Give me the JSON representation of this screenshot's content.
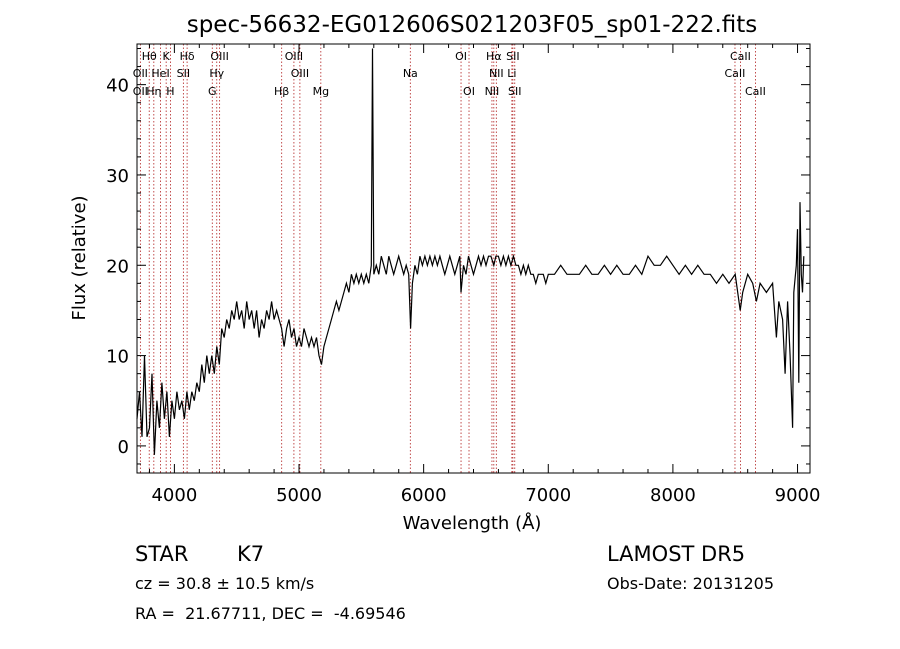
{
  "chart_data": {
    "type": "line",
    "title": "spec-56632-EG012606S021203F05_sp01-222.fits",
    "xlabel": "Wavelength (Å)",
    "ylabel": "Flux (relative)",
    "xlim": [
      3700,
      9100
    ],
    "ylim": [
      -3,
      44.5
    ],
    "xticks": [
      4000,
      5000,
      6000,
      7000,
      8000,
      9000
    ],
    "yticks": [
      0,
      10,
      20,
      30,
      40
    ],
    "grid": false,
    "series": [
      {
        "points": [
          [
            3700,
            3
          ],
          [
            3720,
            6
          ],
          [
            3740,
            1
          ],
          [
            3760,
            10
          ],
          [
            3780,
            1
          ],
          [
            3800,
            2
          ],
          [
            3820,
            8
          ],
          [
            3840,
            -1
          ],
          [
            3860,
            5
          ],
          [
            3880,
            2
          ],
          [
            3900,
            7
          ],
          [
            3920,
            3
          ],
          [
            3940,
            6
          ],
          [
            3960,
            1
          ],
          [
            3980,
            5
          ],
          [
            4000,
            3
          ],
          [
            4020,
            6
          ],
          [
            4040,
            4
          ],
          [
            4060,
            5
          ],
          [
            4080,
            3
          ],
          [
            4100,
            6
          ],
          [
            4120,
            4
          ],
          [
            4140,
            6
          ],
          [
            4160,
            5
          ],
          [
            4180,
            7
          ],
          [
            4200,
            6
          ],
          [
            4220,
            9
          ],
          [
            4240,
            7
          ],
          [
            4260,
            10
          ],
          [
            4280,
            8
          ],
          [
            4300,
            10
          ],
          [
            4320,
            8
          ],
          [
            4340,
            11
          ],
          [
            4360,
            9
          ],
          [
            4380,
            13
          ],
          [
            4400,
            12
          ],
          [
            4420,
            14
          ],
          [
            4440,
            13
          ],
          [
            4460,
            15
          ],
          [
            4480,
            14
          ],
          [
            4500,
            16
          ],
          [
            4520,
            14
          ],
          [
            4540,
            15
          ],
          [
            4560,
            13
          ],
          [
            4580,
            16
          ],
          [
            4600,
            14
          ],
          [
            4620,
            15
          ],
          [
            4640,
            13
          ],
          [
            4660,
            15
          ],
          [
            4680,
            12
          ],
          [
            4700,
            14
          ],
          [
            4720,
            13
          ],
          [
            4740,
            15
          ],
          [
            4760,
            14
          ],
          [
            4780,
            16
          ],
          [
            4800,
            14
          ],
          [
            4820,
            15
          ],
          [
            4840,
            14
          ],
          [
            4860,
            13
          ],
          [
            4880,
            11
          ],
          [
            4900,
            13
          ],
          [
            4920,
            14
          ],
          [
            4940,
            12
          ],
          [
            4960,
            13
          ],
          [
            4980,
            11
          ],
          [
            5000,
            12
          ],
          [
            5020,
            11
          ],
          [
            5040,
            13
          ],
          [
            5060,
            12
          ],
          [
            5080,
            11
          ],
          [
            5100,
            12
          ],
          [
            5120,
            11
          ],
          [
            5140,
            12
          ],
          [
            5160,
            10
          ],
          [
            5180,
            9
          ],
          [
            5200,
            11
          ],
          [
            5220,
            12
          ],
          [
            5240,
            13
          ],
          [
            5260,
            14
          ],
          [
            5280,
            15
          ],
          [
            5300,
            16
          ],
          [
            5320,
            15
          ],
          [
            5340,
            16
          ],
          [
            5360,
            17
          ],
          [
            5380,
            18
          ],
          [
            5400,
            17
          ],
          [
            5420,
            19
          ],
          [
            5440,
            18
          ],
          [
            5460,
            19
          ],
          [
            5480,
            18
          ],
          [
            5500,
            19
          ],
          [
            5520,
            18
          ],
          [
            5540,
            19
          ],
          [
            5560,
            18
          ],
          [
            5580,
            20
          ],
          [
            5590,
            44
          ],
          [
            5600,
            19
          ],
          [
            5620,
            20
          ],
          [
            5640,
            19
          ],
          [
            5660,
            21
          ],
          [
            5680,
            20
          ],
          [
            5700,
            19
          ],
          [
            5720,
            21
          ],
          [
            5740,
            20
          ],
          [
            5760,
            19
          ],
          [
            5780,
            20
          ],
          [
            5800,
            21
          ],
          [
            5820,
            20
          ],
          [
            5840,
            19
          ],
          [
            5860,
            20
          ],
          [
            5880,
            19
          ],
          [
            5895,
            13
          ],
          [
            5910,
            18
          ],
          [
            5930,
            20
          ],
          [
            5950,
            19
          ],
          [
            5970,
            21
          ],
          [
            5990,
            20
          ],
          [
            6010,
            21
          ],
          [
            6030,
            20
          ],
          [
            6050,
            21
          ],
          [
            6070,
            20
          ],
          [
            6090,
            21
          ],
          [
            6110,
            20
          ],
          [
            6130,
            21
          ],
          [
            6150,
            20
          ],
          [
            6170,
            19
          ],
          [
            6190,
            20
          ],
          [
            6210,
            21
          ],
          [
            6230,
            20
          ],
          [
            6250,
            19
          ],
          [
            6270,
            20
          ],
          [
            6290,
            21
          ],
          [
            6300,
            17
          ],
          [
            6320,
            20
          ],
          [
            6340,
            19
          ],
          [
            6360,
            21
          ],
          [
            6380,
            20
          ],
          [
            6400,
            19
          ],
          [
            6420,
            20
          ],
          [
            6440,
            21
          ],
          [
            6460,
            20
          ],
          [
            6480,
            21
          ],
          [
            6500,
            20
          ],
          [
            6520,
            21
          ],
          [
            6540,
            21
          ],
          [
            6563,
            20
          ],
          [
            6580,
            21
          ],
          [
            6600,
            21
          ],
          [
            6620,
            20
          ],
          [
            6640,
            21
          ],
          [
            6660,
            20
          ],
          [
            6680,
            21
          ],
          [
            6700,
            20
          ],
          [
            6720,
            21
          ],
          [
            6740,
            20
          ],
          [
            6760,
            20
          ],
          [
            6780,
            19
          ],
          [
            6800,
            20
          ],
          [
            6820,
            19
          ],
          [
            6840,
            20
          ],
          [
            6860,
            19
          ],
          [
            6880,
            19
          ],
          [
            6900,
            18
          ],
          [
            6920,
            19
          ],
          [
            6940,
            19
          ],
          [
            6960,
            19
          ],
          [
            6980,
            18
          ],
          [
            7000,
            19
          ],
          [
            7050,
            19
          ],
          [
            7100,
            20
          ],
          [
            7150,
            19
          ],
          [
            7200,
            19
          ],
          [
            7250,
            19
          ],
          [
            7300,
            20
          ],
          [
            7350,
            19
          ],
          [
            7400,
            19
          ],
          [
            7450,
            20
          ],
          [
            7500,
            19
          ],
          [
            7550,
            20
          ],
          [
            7600,
            19
          ],
          [
            7650,
            19
          ],
          [
            7700,
            20
          ],
          [
            7750,
            19
          ],
          [
            7800,
            21
          ],
          [
            7850,
            20
          ],
          [
            7900,
            20
          ],
          [
            7950,
            21
          ],
          [
            8000,
            20
          ],
          [
            8050,
            19
          ],
          [
            8100,
            20
          ],
          [
            8150,
            19
          ],
          [
            8200,
            20
          ],
          [
            8250,
            19
          ],
          [
            8300,
            19
          ],
          [
            8350,
            18
          ],
          [
            8400,
            19
          ],
          [
            8450,
            18
          ],
          [
            8500,
            19
          ],
          [
            8540,
            15
          ],
          [
            8560,
            17
          ],
          [
            8600,
            19
          ],
          [
            8640,
            18
          ],
          [
            8670,
            16
          ],
          [
            8700,
            18
          ],
          [
            8750,
            17
          ],
          [
            8800,
            18
          ],
          [
            8830,
            12
          ],
          [
            8850,
            16
          ],
          [
            8880,
            14
          ],
          [
            8900,
            8
          ],
          [
            8920,
            16
          ],
          [
            8940,
            10
          ],
          [
            8960,
            2
          ],
          [
            8970,
            17
          ],
          [
            8990,
            20
          ],
          [
            9000,
            24
          ],
          [
            9010,
            7
          ],
          [
            9020,
            27
          ],
          [
            9030,
            19
          ],
          [
            9040,
            17
          ],
          [
            9050,
            21
          ]
        ]
      }
    ],
    "annotations": [
      {
        "label": "Hθ",
        "x": 3798,
        "row": 0
      },
      {
        "label": "K",
        "x": 3934,
        "row": 0
      },
      {
        "label": "Hδ",
        "x": 4102,
        "row": 0
      },
      {
        "label": "OIII",
        "x": 4363,
        "row": 0
      },
      {
        "label": "OIII",
        "x": 4959,
        "row": 0
      },
      {
        "label": "OI",
        "x": 6300,
        "row": 0
      },
      {
        "label": "Hα",
        "x": 6563,
        "row": 0
      },
      {
        "label": "SII",
        "x": 6716,
        "row": 0
      },
      {
        "label": "CaII",
        "x": 8542,
        "row": 0
      },
      {
        "label": "OII",
        "x": 3727,
        "row": 1
      },
      {
        "label": "HeI",
        "x": 3889,
        "row": 1
      },
      {
        "label": "SII",
        "x": 4072,
        "row": 1
      },
      {
        "label": "Hγ",
        "x": 4340,
        "row": 1
      },
      {
        "label": "OIII",
        "x": 5007,
        "row": 1
      },
      {
        "label": "NII",
        "x": 6583,
        "row": 1
      },
      {
        "label": "Li",
        "x": 6708,
        "row": 1
      },
      {
        "label": "CaII",
        "x": 8498,
        "row": 1
      },
      {
        "label": "OII",
        "x": 3727,
        "row": 2
      },
      {
        "label": "Hη",
        "x": 3835,
        "row": 2
      },
      {
        "label": "H",
        "x": 3968,
        "row": 2
      },
      {
        "label": "G",
        "x": 4304,
        "row": 2
      },
      {
        "label": "Hβ",
        "x": 4861,
        "row": 2
      },
      {
        "label": "Mg",
        "x": 5175,
        "row": 2
      },
      {
        "label": "Na",
        "x": 5893,
        "row": 1
      },
      {
        "label": "OI",
        "x": 6364,
        "row": 2
      },
      {
        "label": "NII",
        "x": 6548,
        "row": 2
      },
      {
        "label": "SII",
        "x": 6731,
        "row": 2
      },
      {
        "label": "CaII",
        "x": 8662,
        "row": 2
      }
    ],
    "line_marks": [
      3727,
      3798,
      3835,
      3889,
      3934,
      3968,
      4072,
      4102,
      4304,
      4340,
      4363,
      4861,
      4959,
      5007,
      5175,
      5893,
      6300,
      6364,
      6548,
      6563,
      6583,
      6708,
      6716,
      6731,
      8498,
      8542,
      8662
    ],
    "colors": {
      "spectrum": "#000000",
      "line_marks": "#b22222",
      "axes": "#000000"
    }
  },
  "info": {
    "class_label": "STAR",
    "subclass": "K7",
    "survey": "LAMOST DR5",
    "cz": "cz = 30.8 ± 10.5 km/s",
    "obs_date": "Obs-Date: 20131205",
    "coords": "RA =  21.67711, DEC =  -4.69546"
  }
}
